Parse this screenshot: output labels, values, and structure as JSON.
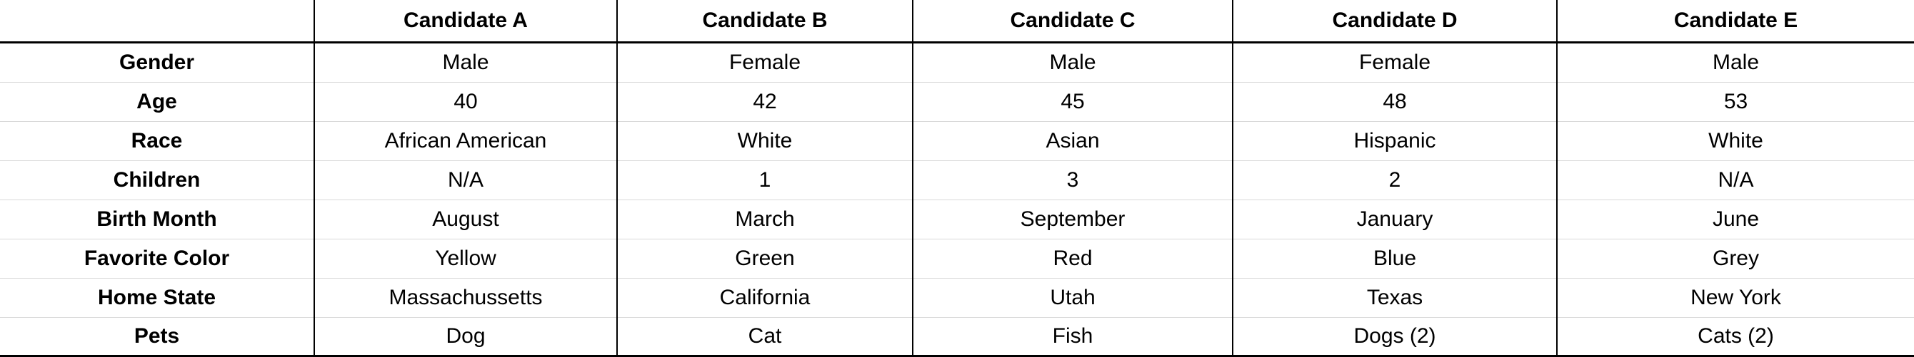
{
  "table": {
    "corner_label": "",
    "columns": [
      "Candidate A",
      "Candidate B",
      "Candidate C",
      "Candidate D",
      "Candidate E"
    ],
    "rows": [
      {
        "label": "Gender",
        "values": [
          "Male",
          "Female",
          "Male",
          "Female",
          "Male"
        ]
      },
      {
        "label": "Age",
        "values": [
          "40",
          "42",
          "45",
          "48",
          "53"
        ]
      },
      {
        "label": "Race",
        "values": [
          "African American",
          "White",
          "Asian",
          "Hispanic",
          "White"
        ]
      },
      {
        "label": "Children",
        "values": [
          "N/A",
          "1",
          "3",
          "2",
          "N/A"
        ]
      },
      {
        "label": "Birth Month",
        "values": [
          "August",
          "March",
          "September",
          "January",
          "June"
        ]
      },
      {
        "label": "Favorite Color",
        "values": [
          "Yellow",
          "Green",
          "Red",
          "Blue",
          "Grey"
        ]
      },
      {
        "label": "Home State",
        "values": [
          "Massachussetts",
          "California",
          "Utah",
          "Texas",
          "New York"
        ]
      },
      {
        "label": "Pets",
        "values": [
          "Dog",
          "Cat",
          "Fish",
          "Dogs (2)",
          "Cats (2)"
        ]
      }
    ]
  }
}
